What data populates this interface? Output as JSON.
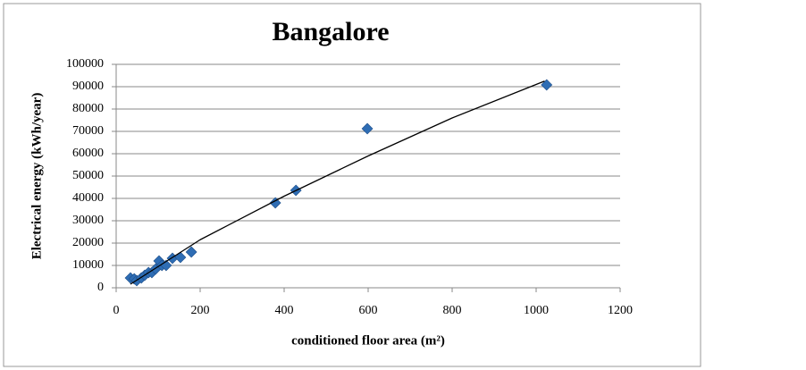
{
  "chart_data": {
    "type": "scatter",
    "title": "Bangalore",
    "x_label": "conditioned floor area (m²)",
    "y_label": "Electrical energy (kWh/year)",
    "series": [
      {
        "color": "#2e6db4",
        "x": [
          34,
          43,
          49,
          60,
          68,
          77,
          85,
          94,
          102,
          109,
          119,
          134,
          153,
          179,
          379,
          428,
          598,
          1025
        ],
        "values": [
          4400,
          4000,
          3200,
          4400,
          5600,
          6800,
          6800,
          8400,
          12000,
          10000,
          10000,
          13200,
          13600,
          16000,
          38000,
          43600,
          71200,
          90800
        ]
      }
    ],
    "trendline": {
      "color": "#000000",
      "x": [
        34,
        100,
        200,
        400,
        600,
        800,
        1020
      ],
      "values": [
        1600,
        9500,
        21500,
        41000,
        59000,
        76000,
        92500
      ]
    },
    "xlim": [
      0,
      1200
    ],
    "xticks": [
      0,
      200,
      400,
      600,
      800,
      1000,
      1200
    ],
    "ylim": [
      0,
      100000
    ],
    "yticks": [
      0,
      10000,
      20000,
      30000,
      40000,
      50000,
      60000,
      70000,
      80000,
      90000,
      100000
    ],
    "grid": true
  }
}
